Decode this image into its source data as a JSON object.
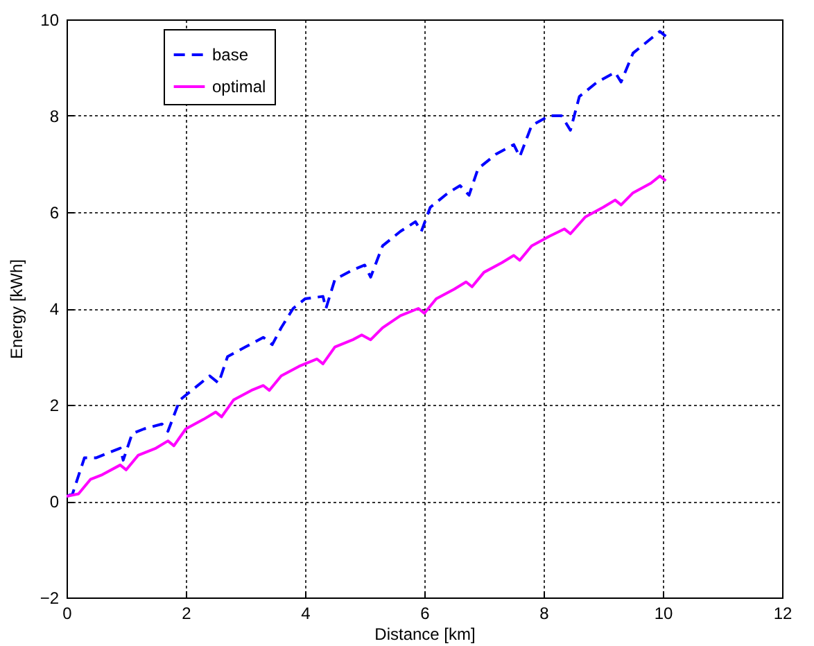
{
  "chart_data": {
    "type": "line",
    "xlabel": "Distance [km]",
    "ylabel": "Energy [kWh]",
    "xlim": [
      0,
      12
    ],
    "xticks": [
      0,
      2,
      4,
      6,
      8,
      10,
      12
    ],
    "ylim": [
      -2,
      10
    ],
    "yticks": [
      -2,
      0,
      2,
      4,
      6,
      8,
      10
    ],
    "grid": true,
    "legend": "top left",
    "series": [
      {
        "name": "base",
        "color": "#0000ff",
        "line_style": "dashed",
        "x": [
          0,
          0.1,
          0.3,
          0.5,
          0.7,
          0.9,
          0.95,
          1.1,
          1.3,
          1.6,
          1.7,
          1.9,
          2.1,
          2.4,
          2.55,
          2.7,
          3.0,
          3.3,
          3.45,
          3.6,
          3.8,
          4.0,
          4.3,
          4.35,
          4.5,
          4.8,
          5.0,
          5.1,
          5.3,
          5.6,
          5.85,
          5.95,
          6.1,
          6.4,
          6.6,
          6.75,
          6.9,
          7.2,
          7.5,
          7.6,
          7.8,
          8.1,
          8.3,
          8.45,
          8.6,
          8.9,
          9.2,
          9.3,
          9.5,
          9.8,
          9.95,
          10.05
        ],
        "values": [
          0.1,
          0.15,
          0.9,
          0.9,
          1.0,
          1.1,
          0.85,
          1.4,
          1.5,
          1.6,
          1.45,
          2.1,
          2.3,
          2.6,
          2.45,
          3.0,
          3.2,
          3.4,
          3.25,
          3.6,
          4.0,
          4.2,
          4.25,
          4.0,
          4.6,
          4.8,
          4.9,
          4.65,
          5.3,
          5.6,
          5.8,
          5.6,
          6.1,
          6.4,
          6.55,
          6.35,
          6.9,
          7.2,
          7.4,
          7.15,
          7.8,
          8.0,
          8.0,
          7.7,
          8.4,
          8.7,
          8.9,
          8.7,
          9.3,
          9.6,
          9.75,
          9.65
        ]
      },
      {
        "name": "optimal",
        "color": "#ff00ff",
        "line_style": "solid",
        "x": [
          0,
          0.2,
          0.4,
          0.6,
          0.9,
          1.0,
          1.2,
          1.5,
          1.7,
          1.8,
          2.0,
          2.3,
          2.5,
          2.6,
          2.8,
          3.1,
          3.3,
          3.4,
          3.6,
          3.9,
          4.2,
          4.3,
          4.5,
          4.8,
          4.95,
          5.1,
          5.3,
          5.6,
          5.9,
          6.0,
          6.2,
          6.5,
          6.7,
          6.8,
          7.0,
          7.3,
          7.5,
          7.6,
          7.8,
          8.1,
          8.35,
          8.45,
          8.7,
          9.0,
          9.2,
          9.3,
          9.5,
          9.8,
          9.95,
          10.05
        ],
        "values": [
          0.1,
          0.15,
          0.45,
          0.55,
          0.75,
          0.65,
          0.95,
          1.1,
          1.25,
          1.15,
          1.5,
          1.7,
          1.85,
          1.75,
          2.1,
          2.3,
          2.4,
          2.3,
          2.6,
          2.8,
          2.95,
          2.85,
          3.2,
          3.35,
          3.45,
          3.35,
          3.6,
          3.85,
          4.0,
          3.9,
          4.2,
          4.4,
          4.55,
          4.45,
          4.75,
          4.95,
          5.1,
          5.0,
          5.3,
          5.5,
          5.65,
          5.55,
          5.9,
          6.1,
          6.25,
          6.15,
          6.4,
          6.6,
          6.75,
          6.65
        ]
      }
    ]
  }
}
